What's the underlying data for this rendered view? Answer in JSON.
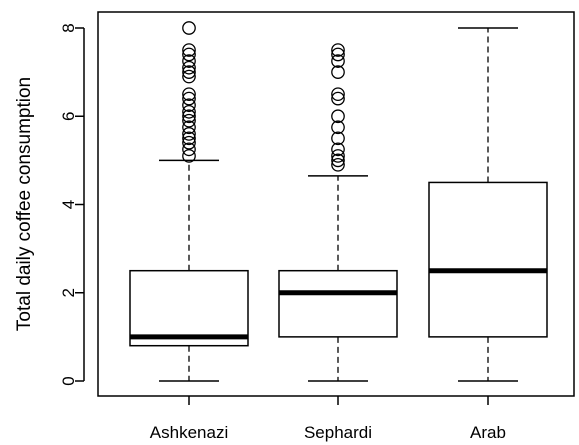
{
  "chart_data": {
    "type": "boxplot",
    "title": "",
    "xlabel": "",
    "ylabel": "Total daily coffee consumption",
    "ylim": [
      0,
      8
    ],
    "yticks": [
      0,
      2,
      4,
      6,
      8
    ],
    "grid": false,
    "legend": "none",
    "categories": [
      "Ashkenazi",
      "Sephardi",
      "Arab"
    ],
    "boxes": [
      {
        "name": "Ashkenazi",
        "whisker_low": 0,
        "q1": 0.8,
        "median": 1.0,
        "q3": 2.5,
        "whisker_high": 5.0,
        "outliers": [
          5.1,
          5.25,
          5.4,
          5.5,
          5.6,
          5.75,
          5.9,
          6.0,
          6.1,
          6.25,
          6.4,
          6.5,
          6.9,
          7.0,
          7.1,
          7.25,
          7.4,
          7.5,
          8.0
        ]
      },
      {
        "name": "Sephardi",
        "whisker_low": 0,
        "q1": 1.0,
        "median": 2.0,
        "q3": 2.5,
        "whisker_high": 4.65,
        "outliers": [
          4.9,
          5.0,
          5.1,
          5.25,
          5.5,
          5.75,
          6.0,
          6.4,
          6.5,
          7.0,
          7.25,
          7.4,
          7.5
        ]
      },
      {
        "name": "Arab",
        "whisker_low": 0,
        "q1": 1.0,
        "median": 2.5,
        "q3": 4.5,
        "whisker_high": 8.0,
        "outliers": []
      }
    ],
    "colors": {
      "box_fill": "#ffffff",
      "stroke": "#000000"
    }
  }
}
